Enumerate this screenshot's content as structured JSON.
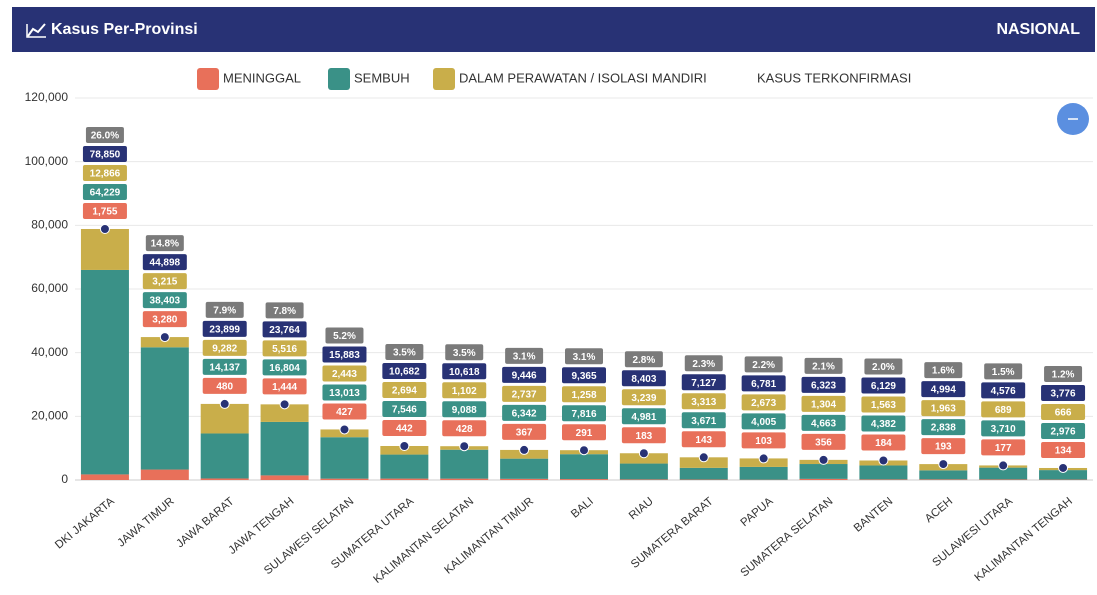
{
  "header": {
    "title": "Kasus Per-Provinsi",
    "scope": "NASIONAL"
  },
  "chart_data": {
    "type": "stacked_bar",
    "categories": [
      "DKI JAKARTA",
      "JAWA TIMUR",
      "JAWA BARAT",
      "JAWA TENGAH",
      "SULAWESI SELATAN",
      "SUMATERA UTARA",
      "KALIMANTAN SELATAN",
      "KALIMANTAN TIMUR",
      "BALI",
      "RIAU",
      "SUMATERA BARAT",
      "PAPUA",
      "SUMATERA SELATAN",
      "BANTEN",
      "ACEH",
      "SULAWESI UTARA",
      "KALIMANTAN TENGAH"
    ],
    "series": [
      {
        "name": "MENINGGAL",
        "color": "#e8705a",
        "values": [
          1755,
          3280,
          480,
          1444,
          427,
          442,
          428,
          367,
          291,
          183,
          143,
          103,
          356,
          184,
          193,
          177,
          134
        ],
        "value_labels": [
          "1,755",
          "3,280",
          "480",
          "1,444",
          "427",
          "442",
          "428",
          "367",
          "291",
          "183",
          "143",
          "103",
          "356",
          "184",
          "193",
          "177",
          "134"
        ]
      },
      {
        "name": "SEMBUH",
        "color": "#3a9187",
        "values": [
          64229,
          38403,
          14137,
          16804,
          13013,
          7546,
          9088,
          6342,
          7816,
          4981,
          3671,
          4005,
          4663,
          4382,
          2838,
          3710,
          2976
        ],
        "value_labels": [
          "64,229",
          "38,403",
          "14,137",
          "16,804",
          "13,013",
          "7,546",
          "9,088",
          "6,342",
          "7,816",
          "4,981",
          "3,671",
          "4,005",
          "4,663",
          "4,382",
          "2,838",
          "3,710",
          "2,976"
        ]
      },
      {
        "name": "DALAM PERAWATAN / ISOLASI MANDIRI",
        "color": "#c9ae4a",
        "values": [
          12866,
          3215,
          9282,
          5516,
          2443,
          2694,
          1102,
          2737,
          1258,
          3239,
          3313,
          2673,
          1304,
          1563,
          1963,
          689,
          666
        ],
        "value_labels": [
          "12,866",
          "3,215",
          "9,282",
          "5,516",
          "2,443",
          "2,694",
          "1,102",
          "2,737",
          "1,258",
          "3,239",
          "3,313",
          "2,673",
          "1,304",
          "1,563",
          "1,963",
          "689",
          "666"
        ]
      },
      {
        "name": "KASUS TERKONFIRMASI",
        "color": "#283275",
        "type": "point",
        "values": [
          78850,
          44898,
          23899,
          23764,
          15883,
          10682,
          10618,
          9446,
          9365,
          8403,
          7127,
          6781,
          6323,
          6129,
          4994,
          4576,
          3776
        ],
        "value_labels": [
          "78,850",
          "44,898",
          "23,899",
          "23,764",
          "15,883",
          "10,682",
          "10,618",
          "9,446",
          "9,365",
          "8,403",
          "7,127",
          "6,781",
          "6,323",
          "6,129",
          "4,994",
          "4,576",
          "3,776"
        ]
      }
    ],
    "shares": {
      "color": "#7a7a7a",
      "values": [
        26.0,
        14.8,
        7.9,
        7.8,
        5.2,
        3.5,
        3.5,
        3.1,
        3.1,
        2.8,
        2.3,
        2.2,
        2.1,
        2.0,
        1.6,
        1.5,
        1.2
      ],
      "value_labels": [
        "26.0%",
        "14.8%",
        "7.9%",
        "7.8%",
        "5.2%",
        "3.5%",
        "3.5%",
        "3.1%",
        "3.1%",
        "2.8%",
        "2.3%",
        "2.2%",
        "2.1%",
        "2.0%",
        "1.6%",
        "1.5%",
        "1.2%"
      ]
    },
    "ylim": [
      0,
      120000
    ],
    "yticks": [
      0,
      {
        "value": 20000,
        "label": "20,000"
      },
      {
        "value": 40000,
        "label": "40,000"
      },
      {
        "value": 60000,
        "label": "60,000"
      },
      {
        "value": 80000,
        "label": "80,000"
      },
      {
        "value": 100000,
        "label": "100,000"
      },
      {
        "value": 120000,
        "label": "120,000"
      }
    ],
    "grid": true
  }
}
